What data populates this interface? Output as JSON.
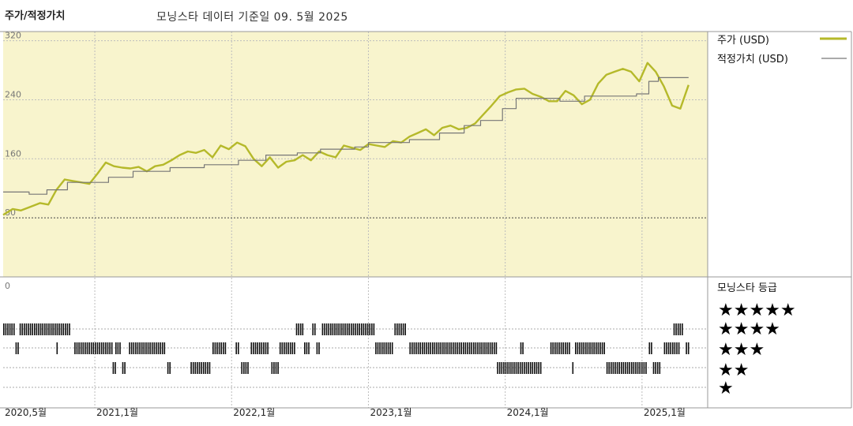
{
  "header": {
    "title": "주가/적정가치",
    "subtitle": "모닝스타 데이터 기준일 09. 5월 2025"
  },
  "colors": {
    "plot_bg": "#f8f4cd",
    "price": "#b5b92a",
    "fair_value": "#777777",
    "grid": "#bdbdbd"
  },
  "chart_data": {
    "type": "line",
    "ylim": [
      0,
      350
    ],
    "yticks": [
      "0",
      "80",
      "160",
      "240",
      "320"
    ],
    "y_tick_values": [
      0,
      80,
      160,
      240,
      320
    ],
    "xlim": [
      2020.33,
      2025.48
    ],
    "x_tick_labels": [
      "2020,5월",
      "2021,1월",
      "2022,1월",
      "2023,1월",
      "2024,1월",
      "2025,1월"
    ],
    "x_tick_values": [
      2020.33,
      2021.0,
      2022.0,
      2023.0,
      2024.0,
      2025.0
    ],
    "legend": {
      "price": "주가 (USD)",
      "fair_value": "적정가치 (USD)",
      "rating": "모닝스타 등급"
    },
    "series": [
      {
        "name": "주가 (USD)",
        "x": [
          2020.33,
          2020.4,
          2020.46,
          2020.53,
          2020.6,
          2020.66,
          2020.72,
          2020.78,
          2020.84,
          2020.9,
          2020.96,
          2021.02,
          2021.08,
          2021.14,
          2021.2,
          2021.26,
          2021.32,
          2021.38,
          2021.44,
          2021.5,
          2021.56,
          2021.62,
          2021.68,
          2021.74,
          2021.8,
          2021.86,
          2021.92,
          2021.98,
          2022.04,
          2022.1,
          2022.16,
          2022.22,
          2022.28,
          2022.34,
          2022.4,
          2022.46,
          2022.52,
          2022.58,
          2022.64,
          2022.7,
          2022.76,
          2022.82,
          2022.88,
          2022.94,
          2023.0,
          2023.06,
          2023.12,
          2023.18,
          2023.24,
          2023.3,
          2023.36,
          2023.42,
          2023.48,
          2023.54,
          2023.6,
          2023.66,
          2023.72,
          2023.78,
          2023.84,
          2023.9,
          2023.96,
          2024.02,
          2024.08,
          2024.14,
          2024.2,
          2024.26,
          2024.32,
          2024.38,
          2024.44,
          2024.5,
          2024.56,
          2024.62,
          2024.68,
          2024.74,
          2024.8,
          2024.86,
          2024.92,
          2024.98,
          2025.04,
          2025.1,
          2025.16,
          2025.22,
          2025.28,
          2025.34
        ],
        "values": [
          84,
          92,
          90,
          95,
          100,
          98,
          118,
          132,
          130,
          128,
          126,
          140,
          155,
          150,
          148,
          147,
          149,
          143,
          150,
          152,
          158,
          165,
          170,
          168,
          172,
          162,
          178,
          173,
          182,
          177,
          160,
          150,
          162,
          148,
          156,
          158,
          165,
          158,
          170,
          165,
          162,
          178,
          175,
          172,
          180,
          178,
          176,
          184,
          182,
          190,
          195,
          200,
          192,
          202,
          205,
          200,
          202,
          208,
          220,
          232,
          245,
          250,
          254,
          255,
          248,
          244,
          238,
          238,
          252,
          246,
          234,
          240,
          262,
          274,
          278,
          282,
          278,
          265,
          290,
          278,
          258,
          232,
          228,
          260
        ],
        "color_key": "price"
      },
      {
        "name": "적정가치 (USD)",
        "x": [
          2020.33,
          2020.52,
          2020.52,
          2020.65,
          2020.65,
          2020.8,
          2020.8,
          2021.1,
          2021.1,
          2021.28,
          2021.28,
          2021.55,
          2021.55,
          2021.8,
          2021.8,
          2022.05,
          2022.05,
          2022.25,
          2022.25,
          2022.48,
          2022.48,
          2022.65,
          2022.65,
          2022.9,
          2022.9,
          2023.0,
          2023.0,
          2023.3,
          2023.3,
          2023.52,
          2023.52,
          2023.7,
          2023.7,
          2023.82,
          2023.82,
          2023.98,
          2023.98,
          2024.08,
          2024.08,
          2024.4,
          2024.4,
          2024.58,
          2024.58,
          2024.96,
          2024.96,
          2025.05,
          2025.05,
          2025.12,
          2025.12,
          2025.34
        ],
        "values": [
          115,
          115,
          112,
          112,
          118,
          118,
          128,
          128,
          135,
          135,
          143,
          143,
          148,
          148,
          152,
          152,
          158,
          158,
          165,
          165,
          168,
          168,
          173,
          173,
          176,
          176,
          182,
          182,
          186,
          186,
          195,
          195,
          205,
          205,
          212,
          212,
          228,
          228,
          242,
          242,
          238,
          238,
          245,
          245,
          248,
          248,
          265,
          265,
          270,
          270
        ],
        "color_key": "fair_value"
      }
    ],
    "rating": {
      "rows": [
        "★★★★★",
        "★★★★",
        "★★★",
        "★★",
        "★"
      ],
      "x_range": [
        2020.33,
        2025.34
      ],
      "segments": [
        {
          "stars": 5,
          "from": 2020.33,
          "to": 2020.41
        },
        {
          "stars": 5,
          "from": 2020.45,
          "to": 2020.82
        },
        {
          "stars": 3,
          "from": 2020.42,
          "to": 2020.44
        },
        {
          "stars": 3,
          "from": 2020.72,
          "to": 2020.73
        },
        {
          "stars": 3,
          "from": 2020.85,
          "to": 2021.13
        },
        {
          "stars": 3,
          "from": 2021.15,
          "to": 2021.19
        },
        {
          "stars": 2,
          "from": 2021.13,
          "to": 2021.15
        },
        {
          "stars": 2,
          "from": 2021.2,
          "to": 2021.23
        },
        {
          "stars": 3,
          "from": 2021.25,
          "to": 2021.52
        },
        {
          "stars": 2,
          "from": 2021.53,
          "to": 2021.55
        },
        {
          "stars": 2,
          "from": 2021.7,
          "to": 2021.85
        },
        {
          "stars": 3,
          "from": 2021.86,
          "to": 2021.96
        },
        {
          "stars": 3,
          "from": 2022.03,
          "to": 2022.06
        },
        {
          "stars": 2,
          "from": 2022.07,
          "to": 2022.13
        },
        {
          "stars": 3,
          "from": 2022.14,
          "to": 2022.27
        },
        {
          "stars": 2,
          "from": 2022.29,
          "to": 2022.34
        },
        {
          "stars": 3,
          "from": 2022.35,
          "to": 2022.46
        },
        {
          "stars": 5,
          "from": 2022.47,
          "to": 2022.52
        },
        {
          "stars": 3,
          "from": 2022.53,
          "to": 2022.57
        },
        {
          "stars": 5,
          "from": 2022.59,
          "to": 2022.61
        },
        {
          "stars": 3,
          "from": 2022.62,
          "to": 2022.65
        },
        {
          "stars": 5,
          "from": 2022.66,
          "to": 2023.04
        },
        {
          "stars": 3,
          "from": 2023.05,
          "to": 2023.18
        },
        {
          "stars": 5,
          "from": 2023.19,
          "to": 2023.28
        },
        {
          "stars": 3,
          "from": 2023.3,
          "to": 2023.94
        },
        {
          "stars": 2,
          "from": 2023.94,
          "to": 2024.26
        },
        {
          "stars": 3,
          "from": 2024.11,
          "to": 2024.13
        },
        {
          "stars": 3,
          "from": 2024.33,
          "to": 2024.48
        },
        {
          "stars": 2,
          "from": 2024.49,
          "to": 2024.5
        },
        {
          "stars": 3,
          "from": 2024.51,
          "to": 2024.73
        },
        {
          "stars": 2,
          "from": 2024.74,
          "to": 2025.04
        },
        {
          "stars": 3,
          "from": 2025.05,
          "to": 2025.07
        },
        {
          "stars": 2,
          "from": 2025.08,
          "to": 2025.14
        },
        {
          "stars": 3,
          "from": 2025.16,
          "to": 2025.27
        },
        {
          "stars": 5,
          "from": 2025.23,
          "to": 2025.3
        },
        {
          "stars": 3,
          "from": 2025.32,
          "to": 2025.34
        }
      ]
    }
  }
}
